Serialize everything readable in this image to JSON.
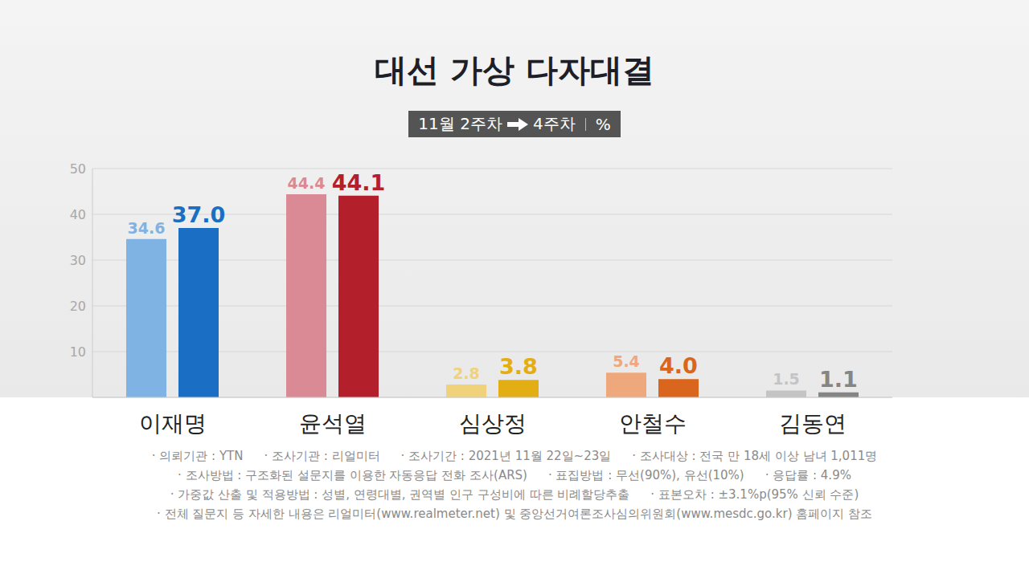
{
  "chart_data": {
    "type": "bar",
    "title": "대선 가상 다자대결",
    "unit": "%",
    "categories": [
      "이재명",
      "윤석열",
      "심상정",
      "안철수",
      "김동연"
    ],
    "series": [
      {
        "name": "11월 2주차",
        "colors": [
          "#7fb3e3",
          "#d98a95",
          "#f0d27a",
          "#efa87c",
          "#c4c4c4"
        ],
        "values": [
          34.6,
          44.4,
          2.8,
          5.4,
          1.5
        ],
        "value_labels": [
          "34.6",
          "44.4",
          "2.8",
          "5.4",
          "1.5"
        ]
      },
      {
        "name": "4주차",
        "colors": [
          "#1a6fc4",
          "#b3202c",
          "#e3ae14",
          "#d9661c",
          "#858585"
        ],
        "values": [
          37.0,
          44.1,
          3.8,
          4.0,
          1.1
        ],
        "value_labels": [
          "37.0",
          "44.1",
          "3.8",
          "4.0",
          "1.1"
        ]
      }
    ],
    "ylim": [
      0,
      50
    ],
    "yticks": [
      10,
      20,
      30,
      40,
      50
    ],
    "grid": true,
    "data_labels": true,
    "notes": [
      [
        "· 의뢰기관 : YTN",
        "· 조사기관 : 리얼미터",
        "· 조사기간 : 2021년 11월 22일~23일",
        "· 조사대상 : 전국 만 18세 이상 남녀 1,011명"
      ],
      [
        "· 조사방법 : 구조화된 설문지를 이용한 자동응답 전화 조사(ARS)",
        "· 표집방법 : 무선(90%), 유선(10%)",
        "· 응답률 : 4.9%"
      ],
      [
        "· 가중값 산출 및 적용방법 : 성별, 연령대별, 권역별 인구 구성비에 따른 비례할당추출",
        "· 표본오차 : ±3.1%p(95% 신뢰 수준)"
      ],
      [
        "· 전체 질문지 등 자세한 내용은 리얼미터(www.realmeter.net) 및 중앙선거여론조사심의위원회(www.mesdc.go.kr) 홈페이지 참조"
      ]
    ]
  }
}
